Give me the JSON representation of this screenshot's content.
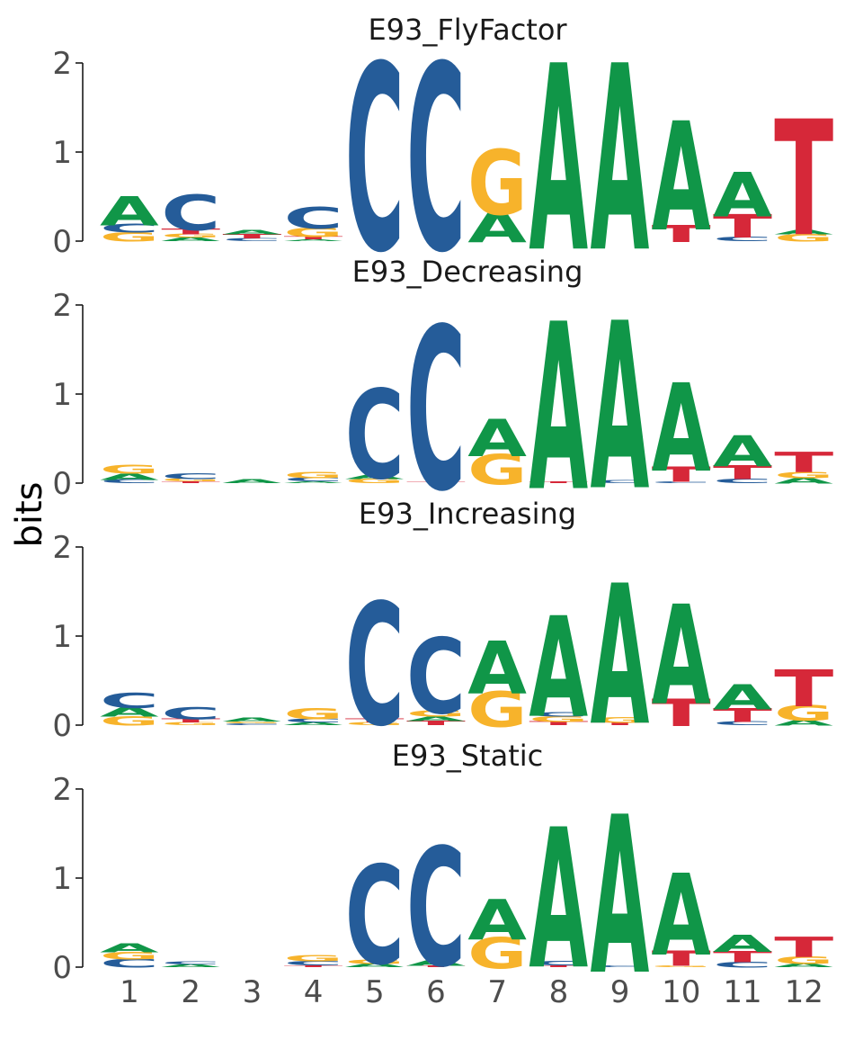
{
  "chart_data": {
    "type": "sequence-logo",
    "ylabel": "bits",
    "ylim": [
      0,
      2
    ],
    "yticks": [
      "0",
      "1",
      "2"
    ],
    "positions": [
      "1",
      "2",
      "3",
      "4",
      "5",
      "6",
      "7",
      "8",
      "9",
      "10",
      "11",
      "12"
    ],
    "colors": {
      "A": "#109648",
      "C": "#255C99",
      "G": "#F7B32B",
      "T": "#D62839"
    },
    "grid": false,
    "panels": [
      {
        "title": "E93_FlyFactor",
        "columns": [
          [
            [
              "G",
              0.1
            ],
            [
              "C",
              0.09
            ],
            [
              "A",
              0.31
            ]
          ],
          [
            [
              "A",
              0.04
            ],
            [
              "G",
              0.04
            ],
            [
              "T",
              0.06
            ],
            [
              "C",
              0.38
            ]
          ],
          [
            [
              "C",
              0.03
            ],
            [
              "T",
              0.05
            ],
            [
              "A",
              0.05
            ]
          ],
          [
            [
              "A",
              0.02
            ],
            [
              "T",
              0.03
            ],
            [
              "G",
              0.1
            ],
            [
              "C",
              0.23
            ]
          ],
          [
            [
              "C",
              1.98
            ]
          ],
          [
            [
              "C",
              1.98
            ]
          ],
          [
            [
              "A",
              0.33
            ],
            [
              "G",
              0.69
            ]
          ],
          [
            [
              "A",
              1.98
            ]
          ],
          [
            [
              "A",
              1.98
            ]
          ],
          [
            [
              "T",
              0.18
            ],
            [
              "A",
              1.16
            ]
          ],
          [
            [
              "C",
              0.05
            ],
            [
              "T",
              0.25
            ],
            [
              "A",
              0.47
            ]
          ],
          [
            [
              "G",
              0.08
            ],
            [
              "A",
              0.05
            ],
            [
              "T",
              1.23
            ]
          ]
        ]
      },
      {
        "title": "E93_Decreasing",
        "columns": [
          [
            [
              "C",
              0.04
            ],
            [
              "A",
              0.07
            ],
            [
              "G",
              0.09
            ]
          ],
          [
            [
              "T",
              0.02
            ],
            [
              "G",
              0.03
            ],
            [
              "C",
              0.06
            ]
          ],
          [
            [
              "A",
              0.04
            ]
          ],
          [
            [
              "A",
              0.02
            ],
            [
              "C",
              0.04
            ],
            [
              "G",
              0.07
            ]
          ],
          [
            [
              "G",
              0.05
            ],
            [
              "A",
              0.05
            ],
            [
              "C",
              0.95
            ]
          ],
          [
            [
              "T",
              0.02
            ],
            [
              "C",
              1.73
            ]
          ],
          [
            [
              "G",
              0.32
            ],
            [
              "A",
              0.4
            ]
          ],
          [
            [
              "T",
              0.02
            ],
            [
              "A",
              1.78
            ]
          ],
          [
            [
              "C",
              0.03
            ],
            [
              "A",
              1.78
            ]
          ],
          [
            [
              "C",
              0.02
            ],
            [
              "T",
              0.16
            ],
            [
              "A",
              0.94
            ]
          ],
          [
            [
              "C",
              0.05
            ],
            [
              "T",
              0.15
            ],
            [
              "A",
              0.33
            ]
          ],
          [
            [
              "A",
              0.06
            ],
            [
              "G",
              0.07
            ],
            [
              "T",
              0.22
            ]
          ]
        ]
      },
      {
        "title": "E93_Increasing",
        "columns": [
          [
            [
              "G",
              0.1
            ],
            [
              "A",
              0.1
            ],
            [
              "C",
              0.16
            ]
          ],
          [
            [
              "G",
              0.03
            ],
            [
              "T",
              0.04
            ],
            [
              "C",
              0.13
            ]
          ],
          [
            [
              "C",
              0.02
            ],
            [
              "G",
              0.02
            ],
            [
              "A",
              0.04
            ]
          ],
          [
            [
              "A",
              0.03
            ],
            [
              "C",
              0.04
            ],
            [
              "G",
              0.12
            ]
          ],
          [
            [
              "G",
              0.03
            ],
            [
              "T",
              0.04
            ],
            [
              "C",
              1.3
            ]
          ],
          [
            [
              "T",
              0.05
            ],
            [
              "A",
              0.05
            ],
            [
              "G",
              0.07
            ],
            [
              "C",
              0.8
            ]
          ],
          [
            [
              "G",
              0.38
            ],
            [
              "A",
              0.56
            ]
          ],
          [
            [
              "T",
              0.04
            ],
            [
              "G",
              0.06
            ],
            [
              "C",
              0.05
            ],
            [
              "A",
              1.07
            ]
          ],
          [
            [
              "T",
              0.03
            ],
            [
              "G",
              0.06
            ],
            [
              "A",
              1.49
            ]
          ],
          [
            [
              "T",
              0.29
            ],
            [
              "A",
              1.06
            ]
          ],
          [
            [
              "C",
              0.04
            ],
            [
              "T",
              0.15
            ],
            [
              "A",
              0.27
            ]
          ],
          [
            [
              "A",
              0.06
            ],
            [
              "G",
              0.17
            ],
            [
              "T",
              0.39
            ]
          ]
        ]
      },
      {
        "title": "E93_Static",
        "columns": [
          [
            [
              "C",
              0.09
            ],
            [
              "G",
              0.08
            ],
            [
              "A",
              0.09
            ]
          ],
          [
            [
              "A",
              0.03
            ],
            [
              "C",
              0.03
            ]
          ],
          [],
          [
            [
              "T",
              0.02
            ],
            [
              "C",
              0.05
            ],
            [
              "G",
              0.07
            ]
          ],
          [
            [
              "A",
              0.04
            ],
            [
              "G",
              0.05
            ],
            [
              "C",
              1.05
            ]
          ],
          [
            [
              "T",
              0.02
            ],
            [
              "A",
              0.06
            ],
            [
              "C",
              1.26
            ]
          ],
          [
            [
              "G",
              0.33
            ],
            [
              "A",
              0.43
            ]
          ],
          [
            [
              "T",
              0.02
            ],
            [
              "C",
              0.05
            ],
            [
              "A",
              1.49
            ]
          ],
          [
            [
              "C",
              0.02
            ],
            [
              "A",
              1.68
            ]
          ],
          [
            [
              "G",
              0.02
            ],
            [
              "T",
              0.16
            ],
            [
              "A",
              0.87
            ]
          ],
          [
            [
              "C",
              0.06
            ],
            [
              "T",
              0.12
            ],
            [
              "A",
              0.18
            ]
          ],
          [
            [
              "A",
              0.04
            ],
            [
              "G",
              0.08
            ],
            [
              "T",
              0.22
            ]
          ]
        ]
      }
    ]
  }
}
